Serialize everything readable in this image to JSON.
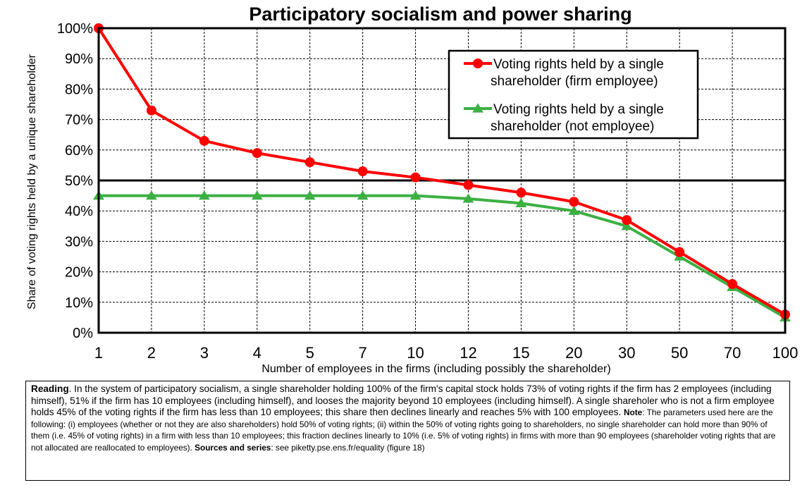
{
  "chart_data": {
    "type": "line",
    "title": "Participatory socialism and power sharing",
    "xlabel": "Number of employees in the firms (including possibly the shareholder)",
    "ylabel": "Share of voting rights held by a unique shareholder",
    "categories": [
      "1",
      "2",
      "3",
      "4",
      "5",
      "7",
      "10",
      "12",
      "15",
      "20",
      "30",
      "50",
      "70",
      "100"
    ],
    "y_ticks": [
      "0%",
      "10%",
      "20%",
      "30%",
      "40%",
      "50%",
      "60%",
      "70%",
      "80%",
      "90%",
      "100%"
    ],
    "ylim": [
      0,
      100
    ],
    "y_unit": "%",
    "grid": true,
    "reference_line": 50,
    "legend_position": "top-right",
    "series": [
      {
        "name": "Voting rights held by a single shareholder (firm employee)",
        "legend_lines": [
          "Voting rights held by a single",
          "shareholder (firm employee)"
        ],
        "color": "#ff0000",
        "marker": "circle",
        "values": [
          100,
          73,
          63,
          59,
          56,
          53,
          51,
          48.5,
          46,
          43,
          37,
          26.5,
          16,
          6
        ]
      },
      {
        "name": "Voting rights held by a single shareholder (not employee)",
        "legend_lines": [
          "Voting rights held by a single",
          "shareholder (not employee)"
        ],
        "color": "#3cb043",
        "marker": "triangle",
        "values": [
          45,
          45,
          45,
          45,
          45,
          45,
          45,
          44,
          42.5,
          40,
          35,
          25,
          15,
          5
        ]
      }
    ]
  },
  "note": {
    "reading_label": "Reading",
    "reading_text": ". In the system of participatory socialism, a single shareholder holding 100% of the firm's capital stock holds 73% of voting rights if the firm has 2 employees (including himself), 51% if the firm has 10 employees (including himself), and looses the majority beyond 10 employees (including himself). A single shareholer who is not a firm employee holds 45% of the voting rights if the firm has less than 10 employees; this share then declines linearly and reaches 5% with 100 employees.",
    "note_label": "Note",
    "note_text": ": The parameters used here are the following: (i) employees (whether or not they are also shareholders) hold 50% of voting rights; (ii) within the 50% of voting rights going to shareholders, no single shareholder can hold more than 90% of them (i.e. 45% of voting rights) in a firm with less than 10 employees; this fraction declines linearly to 10% (i.e. 5% of voting rights) in firms with more than 90 employees (shareholder voting rights that are not allocated are reallocated to employees).",
    "sources_label": "Sources and series",
    "sources_text": ": see piketty.pse.ens.fr/equality (figure 18)"
  }
}
